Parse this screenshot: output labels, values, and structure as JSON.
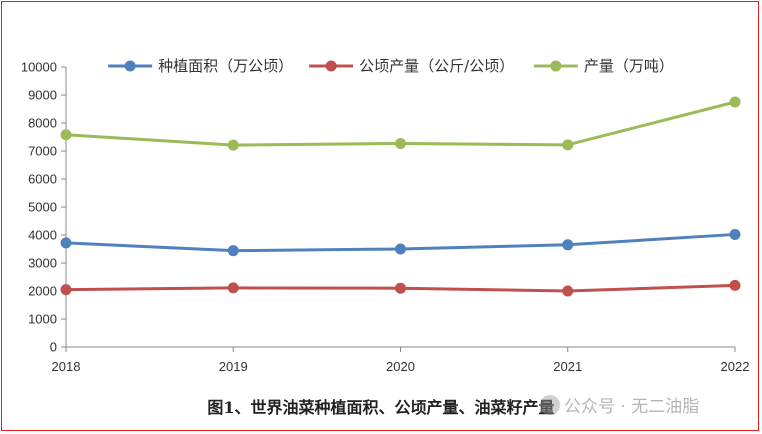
{
  "chart_data": {
    "type": "line",
    "x": [
      "2018",
      "2019",
      "2020",
      "2021",
      "2022"
    ],
    "series": [
      {
        "name": "种植面积（万公顷）",
        "values": [
          3720,
          3440,
          3500,
          3650,
          4020
        ],
        "color": "#4f81bd"
      },
      {
        "name": "公顷产量（公斤/公顷）",
        "values": [
          2050,
          2110,
          2100,
          2000,
          2200
        ],
        "color": "#c0504d"
      },
      {
        "name": "产量（万吨）",
        "values": [
          7580,
          7210,
          7270,
          7220,
          8750
        ],
        "color": "#9bbb59"
      }
    ],
    "ylim": [
      0,
      10000
    ],
    "yticks": [
      "0",
      "1000",
      "2000",
      "3000",
      "4000",
      "5000",
      "6000",
      "7000",
      "8000",
      "9000",
      "10000"
    ],
    "grid": false,
    "legend_position": "top",
    "caption": "图1、世界油菜种植面积、公顷产量、油菜籽产量"
  },
  "watermark": {
    "text": "公众号 · 无二油脂",
    "icon": "wechat-icon"
  }
}
